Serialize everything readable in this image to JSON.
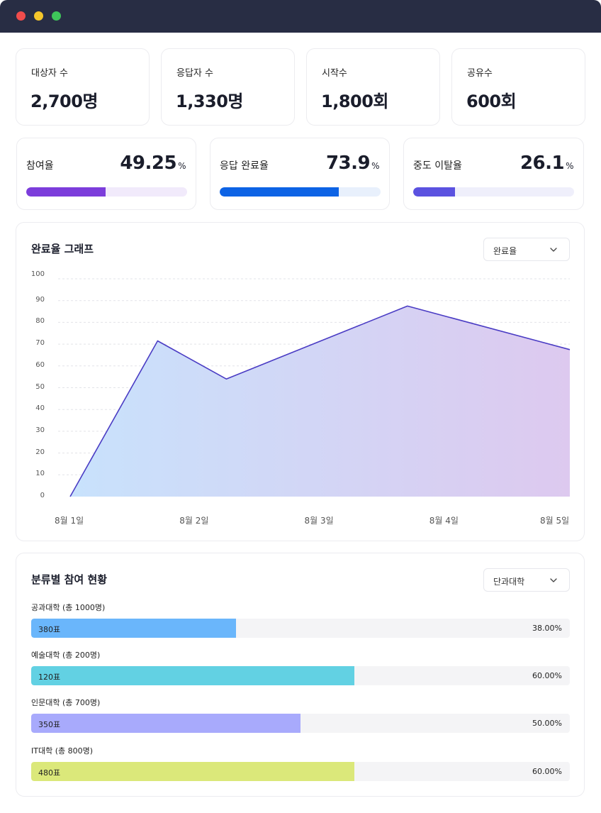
{
  "window": {
    "controls": [
      "close",
      "minimize",
      "maximize"
    ]
  },
  "stats": [
    {
      "label": "대상자 수",
      "value": "2,700명"
    },
    {
      "label": "응답자 수",
      "value": "1,330명"
    },
    {
      "label": "시작수",
      "value": "1,800회"
    },
    {
      "label": "공유수",
      "value": "600회"
    }
  ],
  "rates": [
    {
      "label": "참여율",
      "value": "49.25",
      "unit": "%",
      "percent": 49.25,
      "color": "#7c3ddb",
      "track": "#f1eafb"
    },
    {
      "label": "응답 완료율",
      "value": "73.9",
      "unit": "%",
      "percent": 73.9,
      "color": "#0d63e5",
      "track": "#e8f0fc"
    },
    {
      "label": "중도 이탈율",
      "value": "26.1",
      "unit": "%",
      "percent": 26.1,
      "color": "#5b52e0",
      "track": "#efeffb"
    }
  ],
  "completion": {
    "title": "완료율 그래프",
    "select_value": "완료율",
    "chevron_icon": "chevron-down-icon"
  },
  "chart_data": {
    "type": "area",
    "title": "완료율 그래프",
    "x": [
      "8월 1일",
      "8월 1.7일",
      "8월 2.25일",
      "8월 3.7일",
      "8월 5일"
    ],
    "x_tick_labels": [
      "8월 1일",
      "8월 2일",
      "8월 3일",
      "8월 4일",
      "8월 5일"
    ],
    "y_tick_labels": [
      "100",
      "90",
      "80",
      "70",
      "60",
      "50",
      "40",
      "30",
      "20",
      "10",
      "0"
    ],
    "series": [
      {
        "values": [
          0,
          71.5,
          54,
          87.5,
          67.5
        ]
      }
    ],
    "ylim": [
      0,
      100
    ],
    "grid": true,
    "line_color": "#4a3cc4",
    "fill_gradient": [
      "#c8e2fc",
      "#ddc9ef"
    ]
  },
  "participation": {
    "title": "분류별 참여 현황",
    "select_value": "단과대학",
    "categories": [
      {
        "label": "공과대학 (총 1000명)",
        "votes": "380표",
        "percent_text": "38.00%",
        "percent": 38,
        "color": "#6ab6fb"
      },
      {
        "label": "예술대학 (총 200명)",
        "votes": "120표",
        "percent_text": "60.00%",
        "percent": 60,
        "color": "#62d1e3"
      },
      {
        "label": "인문대학 (총 700명)",
        "votes": "350표",
        "percent_text": "50.00%",
        "percent": 50,
        "color": "#a8aafc"
      },
      {
        "label": "IT대학 (총 800명)",
        "votes": "480표",
        "percent_text": "60.00%",
        "percent": 60,
        "color": "#dbe87a"
      }
    ]
  }
}
